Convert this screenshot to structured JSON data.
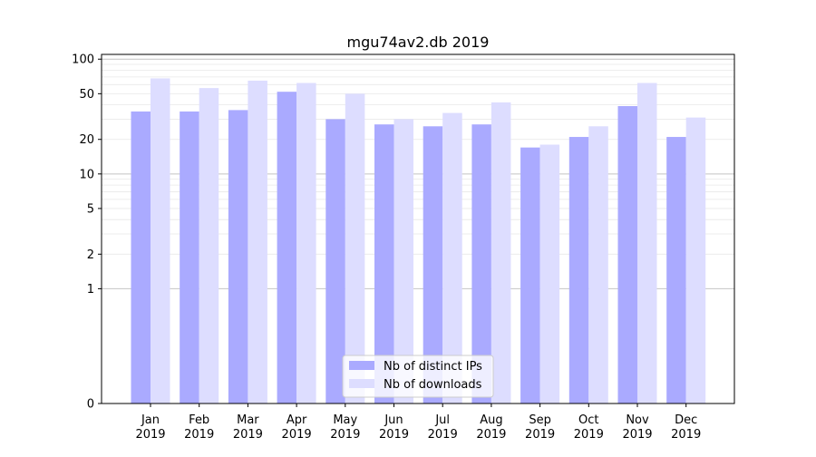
{
  "chart_data": {
    "type": "bar",
    "title": "mgu74av2.db 2019",
    "xlabel": "",
    "ylabel": "",
    "yscale": "symlog",
    "ylim": [
      0,
      110
    ],
    "grid": "horizontal",
    "legend_position": "bottom-center",
    "categories": [
      [
        "Jan",
        "2019"
      ],
      [
        "Feb",
        "2019"
      ],
      [
        "Mar",
        "2019"
      ],
      [
        "Apr",
        "2019"
      ],
      [
        "May",
        "2019"
      ],
      [
        "Jun",
        "2019"
      ],
      [
        "Jul",
        "2019"
      ],
      [
        "Aug",
        "2019"
      ],
      [
        "Sep",
        "2019"
      ],
      [
        "Oct",
        "2019"
      ],
      [
        "Nov",
        "2019"
      ],
      [
        "Dec",
        "2019"
      ]
    ],
    "yticks": [
      0,
      1,
      2,
      5,
      10,
      20,
      50,
      100
    ],
    "series": [
      {
        "name": "Nb of distinct IPs",
        "color": "#aaaaff",
        "values": [
          35,
          35,
          36,
          52,
          30,
          27,
          26,
          27,
          17,
          21,
          39,
          21
        ]
      },
      {
        "name": "Nb of downloads",
        "color": "#ddddff",
        "values": [
          68,
          56,
          65,
          62,
          50,
          30,
          34,
          42,
          18,
          26,
          62,
          31
        ]
      }
    ]
  }
}
